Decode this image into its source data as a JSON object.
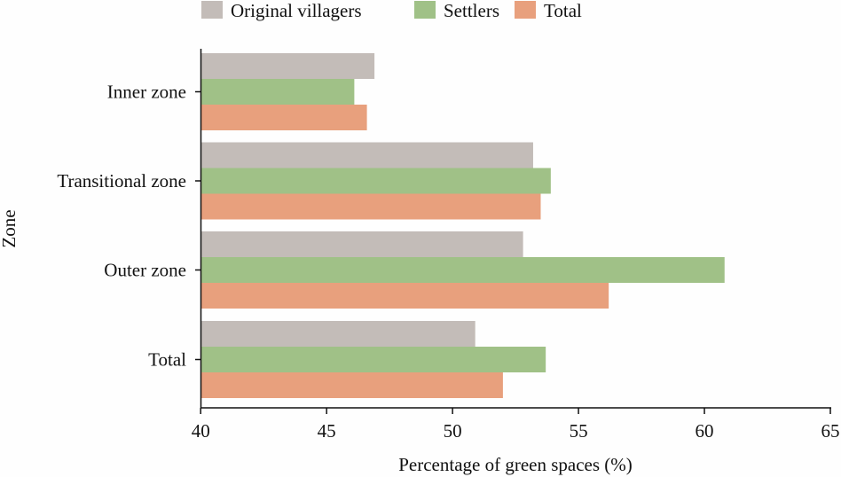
{
  "chart_data": {
    "type": "bar",
    "orientation": "horizontal",
    "title": "",
    "xlabel": "Percentage of green spaces (%)",
    "ylabel": "Zone",
    "xlim": [
      40,
      65
    ],
    "xticks": [
      40,
      45,
      50,
      55,
      60,
      65
    ],
    "categories": [
      "Inner zone",
      "Transitional zone",
      "Outer zone",
      "Total"
    ],
    "series": [
      {
        "name": "Original villagers",
        "color": "#c3bcb8",
        "values": [
          46.9,
          53.2,
          52.8,
          50.9
        ]
      },
      {
        "name": "Settlers",
        "color": "#a0c187",
        "values": [
          46.1,
          53.9,
          60.8,
          53.7
        ]
      },
      {
        "name": "Total",
        "color": "#e8a07d",
        "values": [
          46.6,
          53.5,
          56.2,
          52.0
        ]
      }
    ],
    "legend_position": "top",
    "grid": false
  }
}
